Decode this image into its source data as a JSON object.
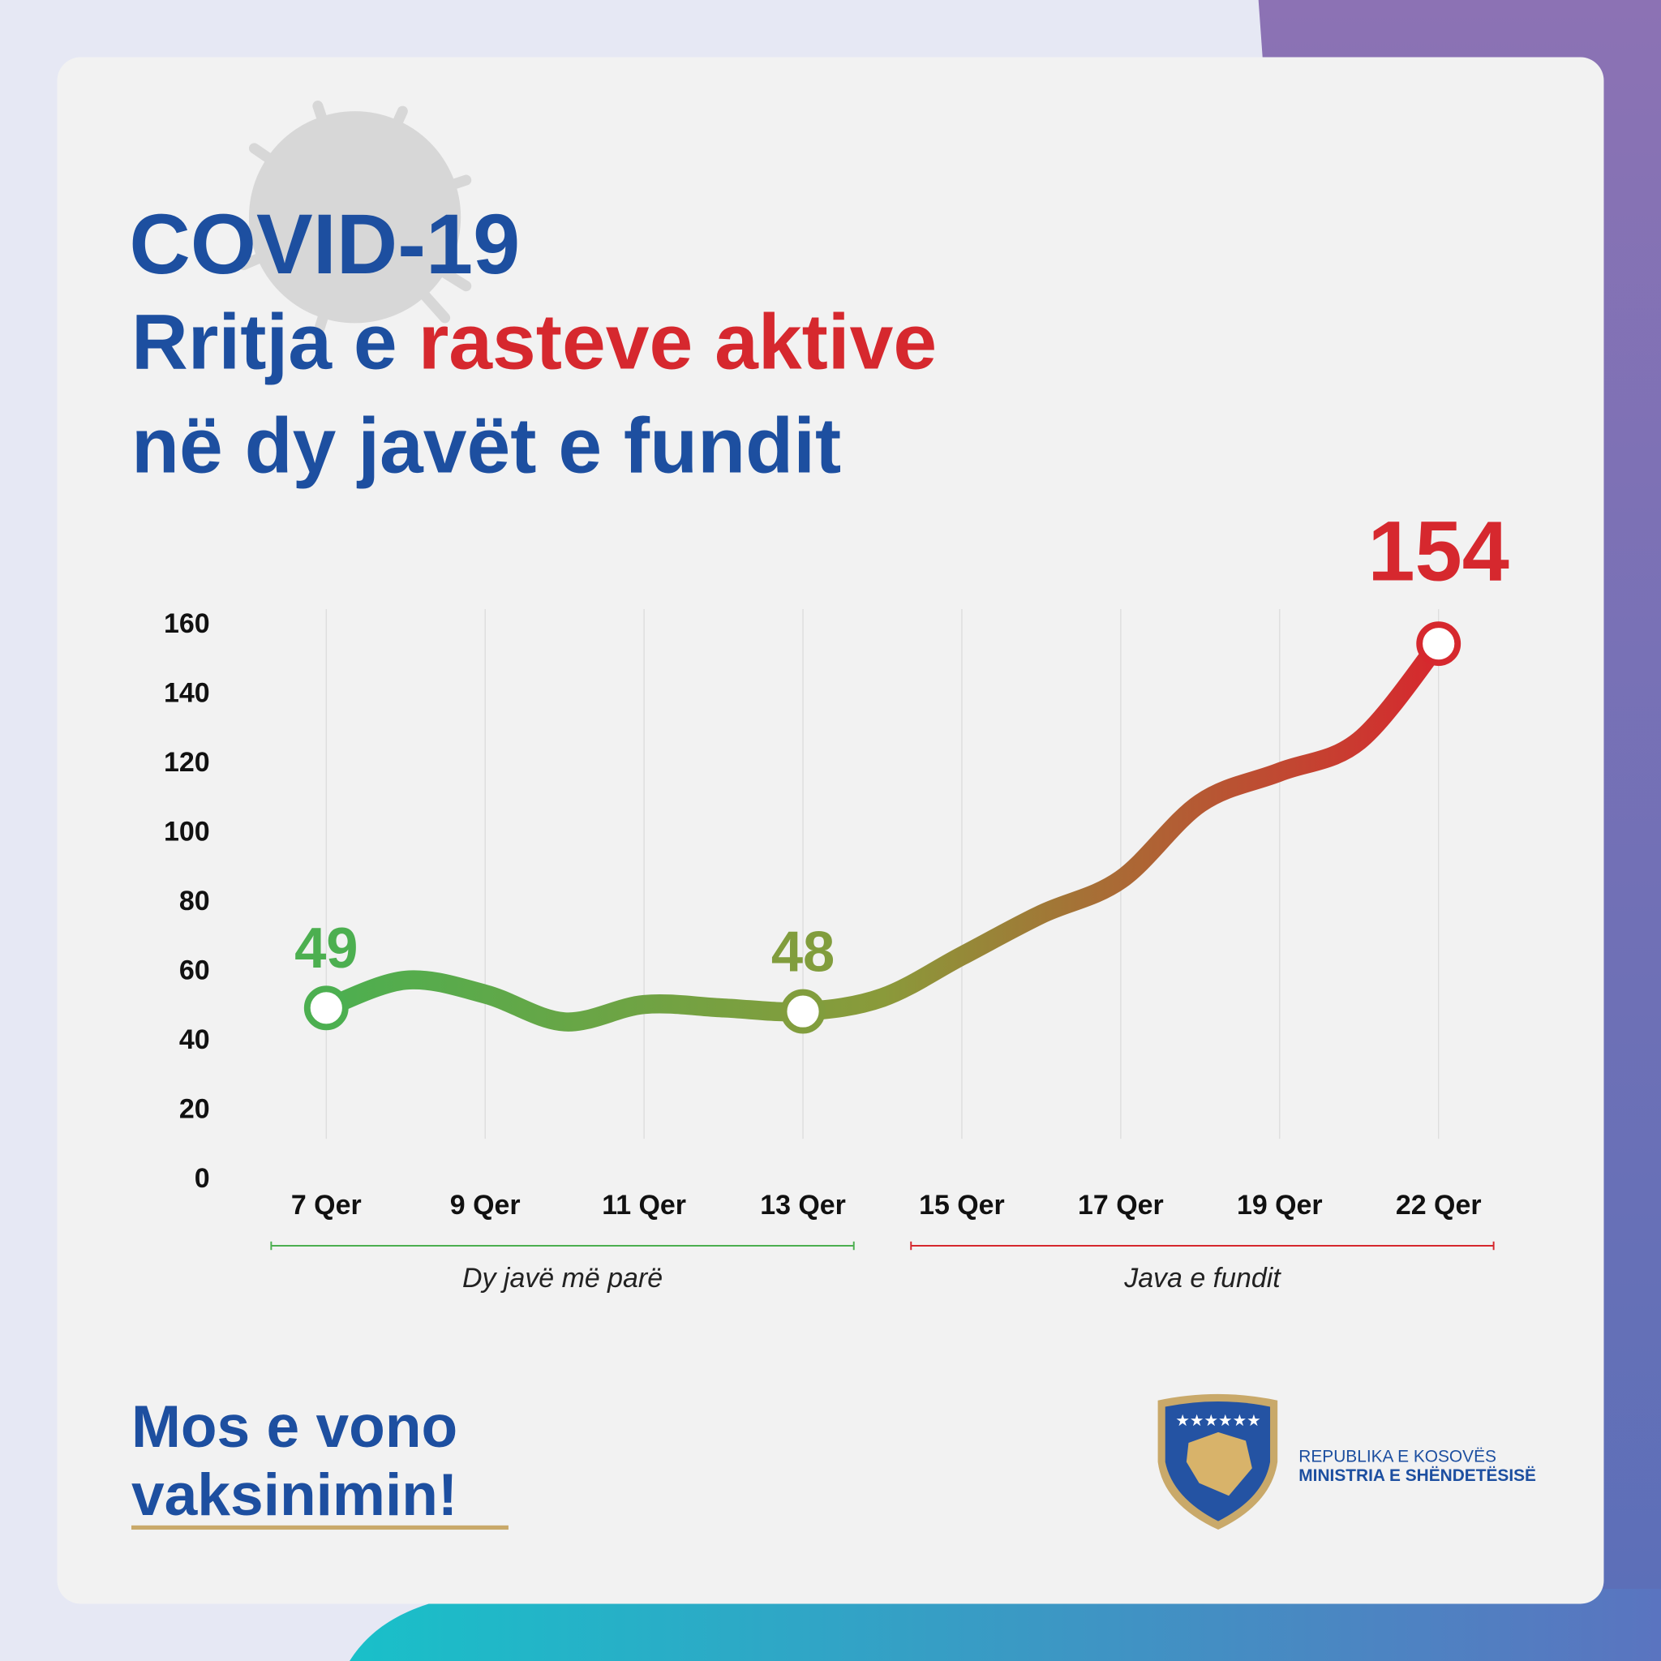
{
  "chart_data": {
    "type": "line",
    "title": "COVID-19",
    "subtitle": [
      "Rritja e",
      "rasteve aktive",
      "në dy javët e fundit"
    ],
    "categories": [
      "7 Qer",
      null,
      "9 Qer",
      null,
      "11 Qer",
      null,
      "13 Qer",
      null,
      "15 Qer",
      null,
      "17 Qer",
      null,
      "19 Qer",
      null,
      "22 Qer"
    ],
    "values": [
      49,
      57,
      53,
      45,
      50,
      49,
      48,
      52,
      64,
      76,
      86,
      108,
      117,
      126,
      154
    ],
    "value_labels": [
      "49",
      null,
      null,
      null,
      null,
      null,
      "48",
      null,
      null,
      null,
      null,
      null,
      null,
      null,
      "154"
    ],
    "line_colors": [
      "#4caf50",
      "#8a9a3a",
      "#d6282e"
    ],
    "ylim": [
      0,
      160
    ],
    "yticks": [
      0,
      20,
      40,
      60,
      80,
      100,
      120,
      140,
      160
    ],
    "grid": true,
    "periods": [
      {
        "label": "Dy javë më parë",
        "color": "#4caf50"
      },
      {
        "label": "Java e fundit",
        "color": "#d6282e"
      }
    ],
    "slogan": [
      "Mos e vono",
      "vaksinimin!"
    ],
    "logo": [
      "REPUBLIKA E KOSOVËS",
      "MINISTRIA E SHËNDETËSISË"
    ]
  }
}
